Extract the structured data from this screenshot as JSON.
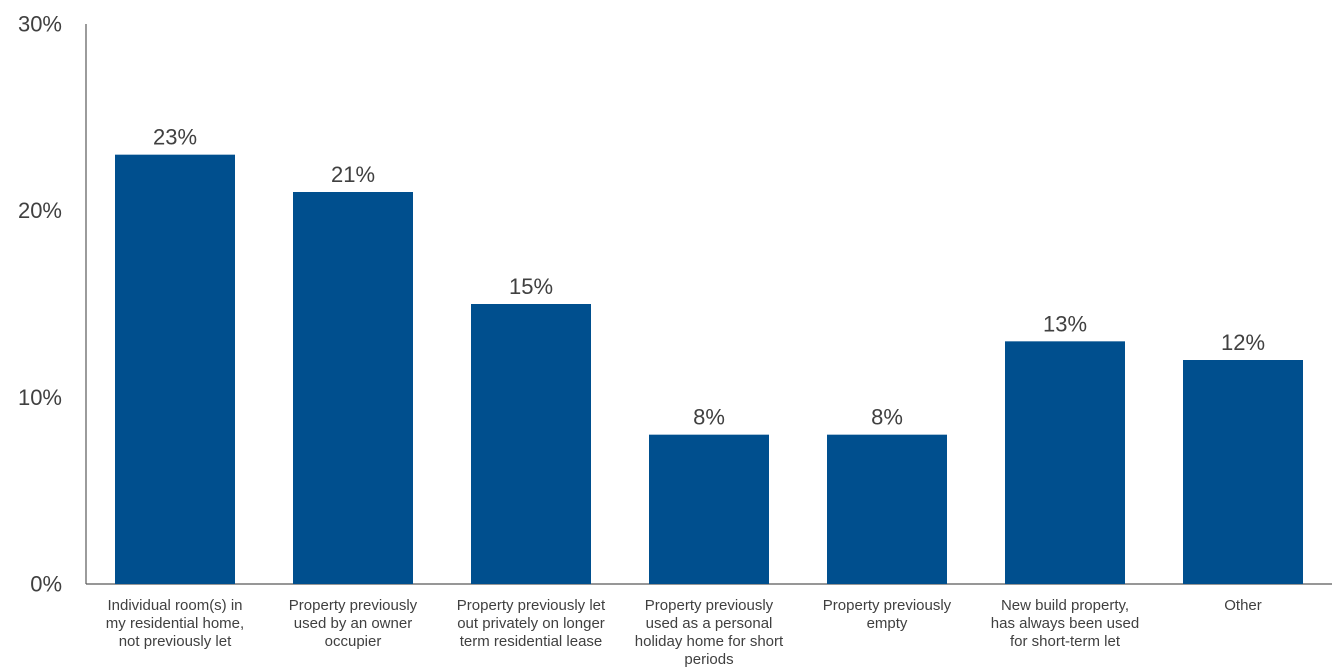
{
  "chart_data": {
    "type": "bar",
    "categories": [
      [
        "Individual room(s) in",
        "my residential home,",
        "not previously let"
      ],
      [
        "Property previously",
        "used by an owner",
        "occupier"
      ],
      [
        "Property previously let",
        "out privately on longer",
        "term residential lease"
      ],
      [
        "Property previously",
        "used as a personal",
        "holiday home for short",
        "periods"
      ],
      [
        "Property previously",
        "empty"
      ],
      [
        "New build property,",
        "has always been used",
        "for short-term let"
      ],
      [
        "Other"
      ]
    ],
    "values": [
      23,
      21,
      15,
      8,
      8,
      13,
      12
    ],
    "data_labels": [
      "23%",
      "21%",
      "15%",
      "8%",
      "8%",
      "13%",
      "12%"
    ],
    "y_ticks": [
      0,
      10,
      20,
      30
    ],
    "y_tick_labels": [
      "0%",
      "10%",
      "20%",
      "30%"
    ],
    "ylim": [
      0,
      30
    ],
    "title": "",
    "xlabel": "",
    "ylabel": "",
    "grid": false,
    "bar_color": "#004f8e"
  }
}
